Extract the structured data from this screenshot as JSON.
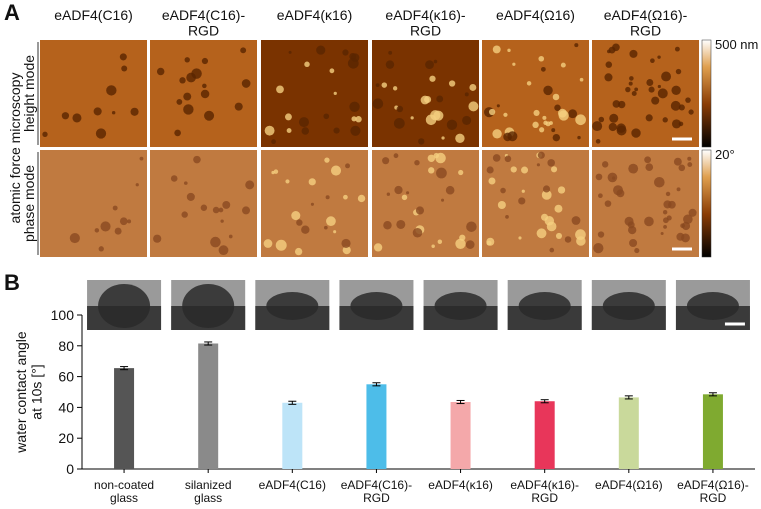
{
  "panel_a": {
    "label": "A",
    "side_label": "atomic force microscopy",
    "rows": [
      "height mode",
      "phase mode"
    ],
    "columns": [
      "eADF4(C16)",
      "eADF4(C16)-\nRGD",
      "eADF4(κ16)",
      "eADF4(κ16)-\nRGD",
      "eADF4(Ω16)",
      "eADF4(Ω16)-\nRGD"
    ],
    "scale_labels": [
      "500 nm",
      "20°"
    ]
  },
  "chart_data": {
    "type": "bar",
    "panel_label": "B",
    "y_label": "water contact angle\nat 10s [°]",
    "categories": [
      "non-coated\nglass",
      "silanized\nglass",
      "eADF4(C16)",
      "eADF4(C16)-\nRGD",
      "eADF4(κ16)",
      "eADF4(κ16)-\nRGD",
      "eADF4(Ω16)",
      "eADF4(Ω16)-\nRGD"
    ],
    "values": [
      65.5,
      81.5,
      43,
      55,
      43.5,
      44,
      46.5,
      48.5
    ],
    "errors": [
      1,
      1,
      1,
      1,
      1,
      1,
      1,
      1
    ],
    "colors": [
      "#555555",
      "#8a8a8a",
      "#bde4f8",
      "#4dbde9",
      "#f4a8aa",
      "#e8365a",
      "#c9d99b",
      "#7faa30"
    ],
    "ylim": [
      0,
      100
    ],
    "yticks": [
      0,
      20,
      40,
      60,
      80,
      100
    ]
  }
}
